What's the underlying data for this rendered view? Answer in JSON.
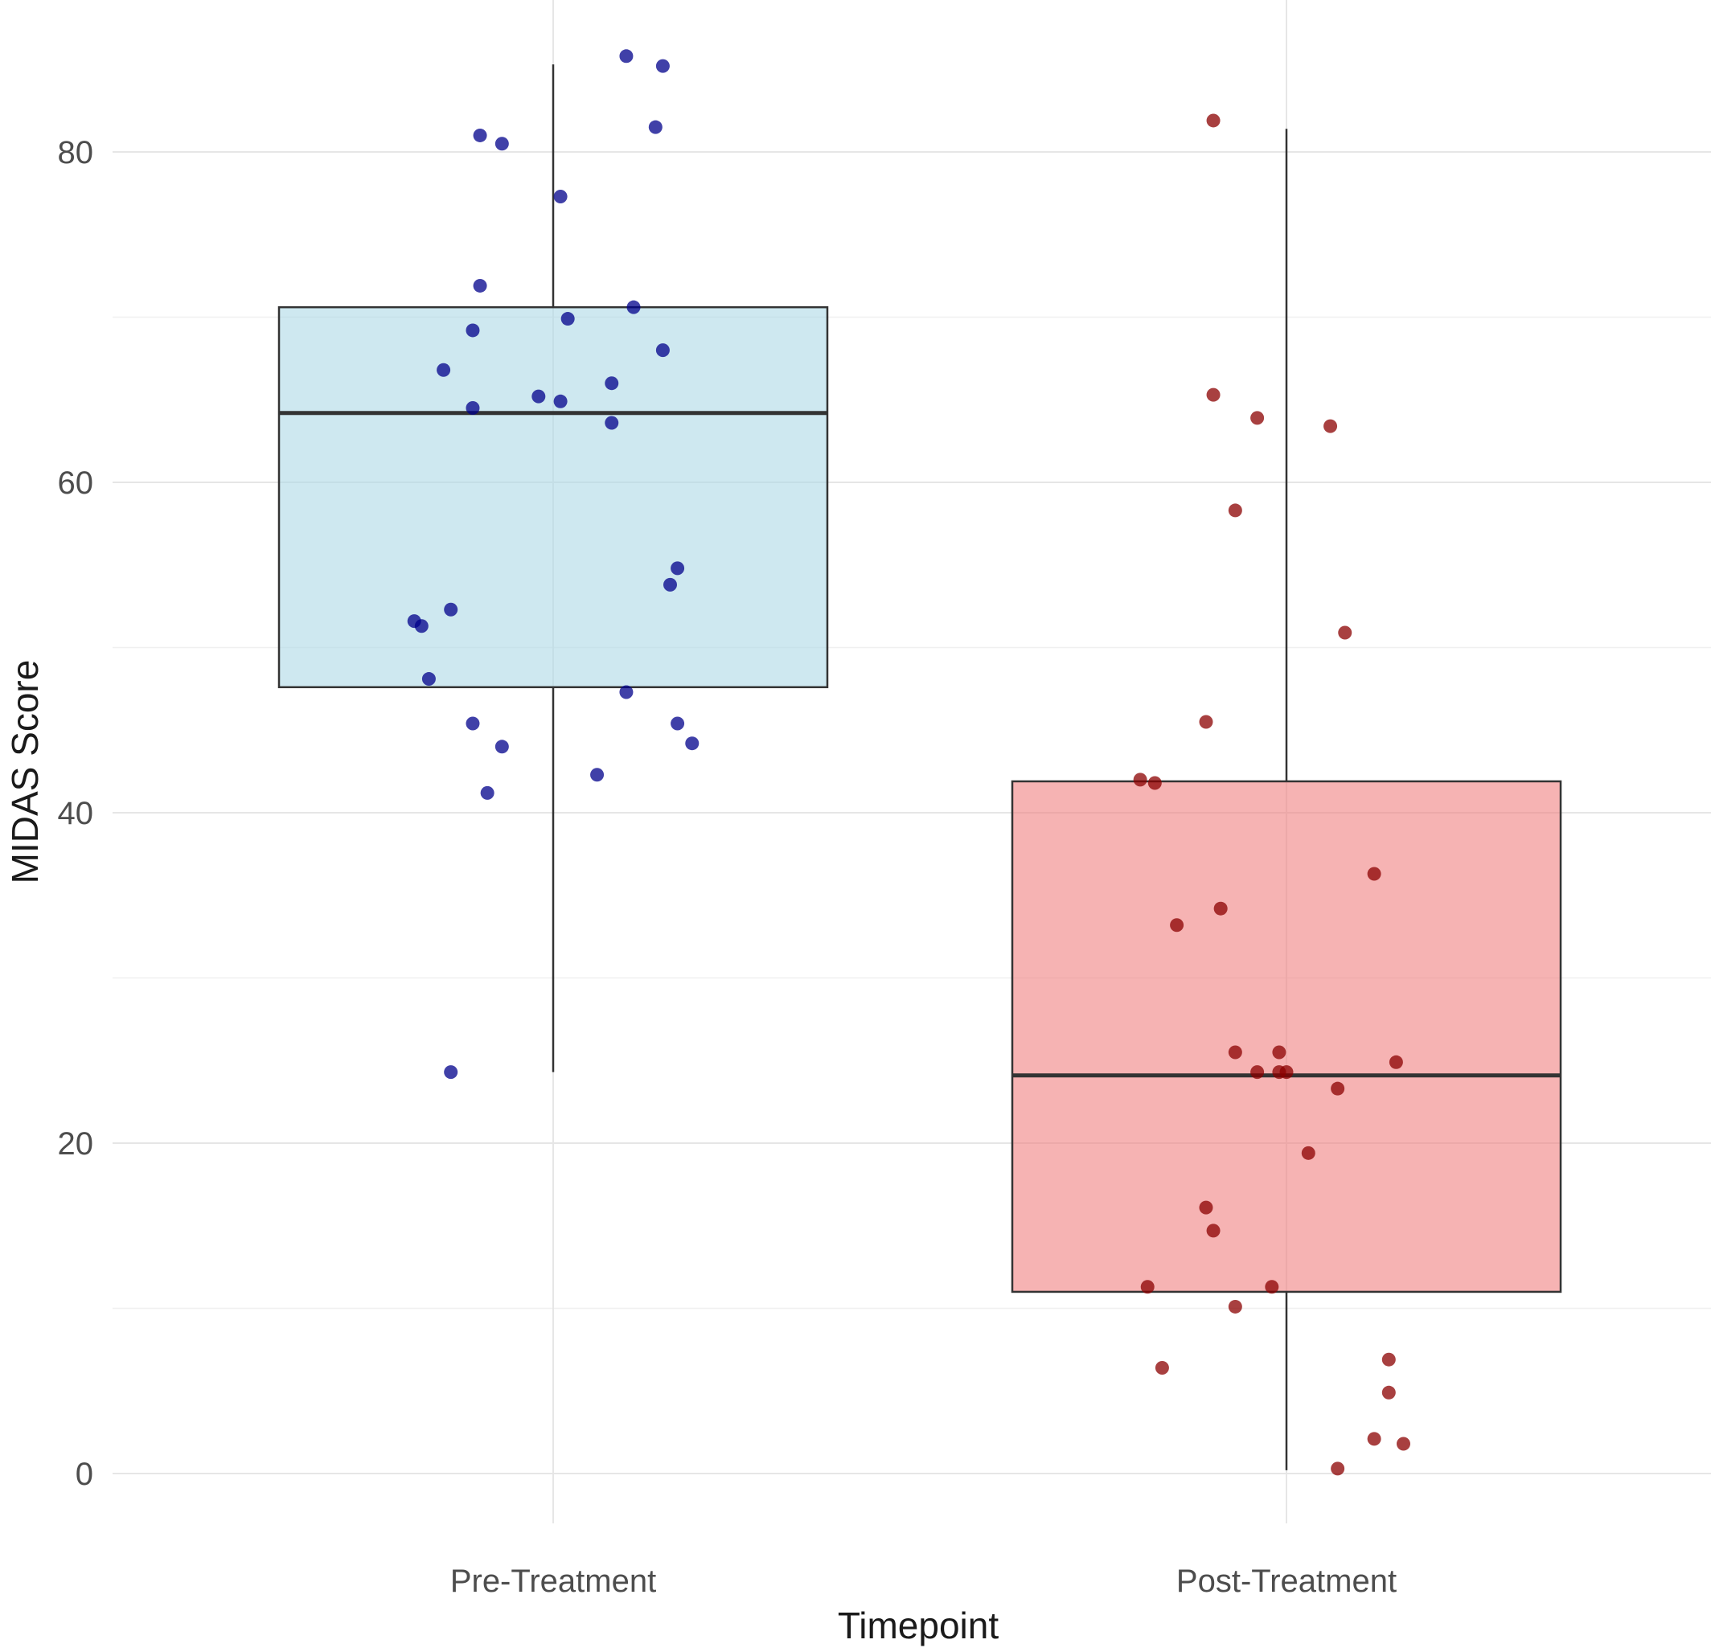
{
  "chart_data": {
    "type": "box",
    "title": "",
    "xlabel": "Timepoint",
    "ylabel": "MIDAS Score",
    "ylim": [
      -3.5,
      89.5
    ],
    "yticks": [
      0,
      20,
      40,
      60,
      80
    ],
    "grid": true,
    "categories": [
      "Pre-Treatment",
      "Post-Treatment"
    ],
    "boxes": [
      {
        "category": "Pre-Treatment",
        "fill": "#add8e6",
        "point_color": "#00008b",
        "whisker_low": 24.3,
        "q1": 47.6,
        "median": 64.2,
        "q3": 70.6,
        "whisker_high": 85.3,
        "points": [
          {
            "x": 0.1,
            "y": 85.8
          },
          {
            "x": 0.15,
            "y": 85.2
          },
          {
            "x": 0.14,
            "y": 81.5
          },
          {
            "x": -0.1,
            "y": 81.0
          },
          {
            "x": -0.07,
            "y": 80.5
          },
          {
            "x": 0.01,
            "y": 77.3
          },
          {
            "x": -0.1,
            "y": 71.9
          },
          {
            "x": 0.11,
            "y": 70.6
          },
          {
            "x": 0.02,
            "y": 69.9
          },
          {
            "x": -0.11,
            "y": 69.2
          },
          {
            "x": 0.15,
            "y": 68.0
          },
          {
            "x": -0.15,
            "y": 66.8
          },
          {
            "x": 0.08,
            "y": 66.0
          },
          {
            "x": -0.02,
            "y": 65.2
          },
          {
            "x": 0.01,
            "y": 64.9
          },
          {
            "x": -0.11,
            "y": 64.5
          },
          {
            "x": 0.08,
            "y": 63.6
          },
          {
            "x": 0.17,
            "y": 54.8
          },
          {
            "x": 0.16,
            "y": 53.8
          },
          {
            "x": -0.14,
            "y": 52.3
          },
          {
            "x": -0.19,
            "y": 51.6
          },
          {
            "x": -0.18,
            "y": 51.3
          },
          {
            "x": -0.17,
            "y": 48.1
          },
          {
            "x": 0.1,
            "y": 47.3
          },
          {
            "x": -0.11,
            "y": 45.4
          },
          {
            "x": 0.17,
            "y": 45.4
          },
          {
            "x": -0.07,
            "y": 44.0
          },
          {
            "x": 0.19,
            "y": 44.2
          },
          {
            "x": 0.06,
            "y": 42.3
          },
          {
            "x": -0.09,
            "y": 41.2
          },
          {
            "x": -0.14,
            "y": 24.3
          }
        ]
      },
      {
        "category": "Post-Treatment",
        "fill": "#f08080",
        "point_color": "#8b0000",
        "whisker_low": 0.2,
        "q1": 11.0,
        "median": 24.1,
        "q3": 41.9,
        "whisker_high": 81.4,
        "points": [
          {
            "x": -0.1,
            "y": 81.9
          },
          {
            "x": -0.1,
            "y": 65.3
          },
          {
            "x": -0.04,
            "y": 63.9
          },
          {
            "x": 0.06,
            "y": 63.4
          },
          {
            "x": -0.07,
            "y": 58.3
          },
          {
            "x": 0.08,
            "y": 50.9
          },
          {
            "x": -0.11,
            "y": 45.5
          },
          {
            "x": -0.2,
            "y": 42.0
          },
          {
            "x": -0.18,
            "y": 41.8
          },
          {
            "x": 0.12,
            "y": 36.3
          },
          {
            "x": -0.09,
            "y": 34.2
          },
          {
            "x": -0.15,
            "y": 33.2
          },
          {
            "x": -0.07,
            "y": 25.5
          },
          {
            "x": -0.01,
            "y": 25.5
          },
          {
            "x": -0.04,
            "y": 24.3
          },
          {
            "x": -0.01,
            "y": 24.3
          },
          {
            "x": 0.0,
            "y": 24.3
          },
          {
            "x": 0.15,
            "y": 24.9
          },
          {
            "x": 0.07,
            "y": 23.3
          },
          {
            "x": 0.03,
            "y": 19.4
          },
          {
            "x": -0.11,
            "y": 16.1
          },
          {
            "x": -0.1,
            "y": 14.7
          },
          {
            "x": -0.19,
            "y": 11.3
          },
          {
            "x": -0.02,
            "y": 11.3
          },
          {
            "x": -0.07,
            "y": 10.1
          },
          {
            "x": -0.17,
            "y": 6.4
          },
          {
            "x": 0.14,
            "y": 6.9
          },
          {
            "x": 0.14,
            "y": 4.9
          },
          {
            "x": 0.12,
            "y": 2.1
          },
          {
            "x": 0.16,
            "y": 1.8
          },
          {
            "x": 0.07,
            "y": 0.3
          }
        ]
      }
    ]
  }
}
